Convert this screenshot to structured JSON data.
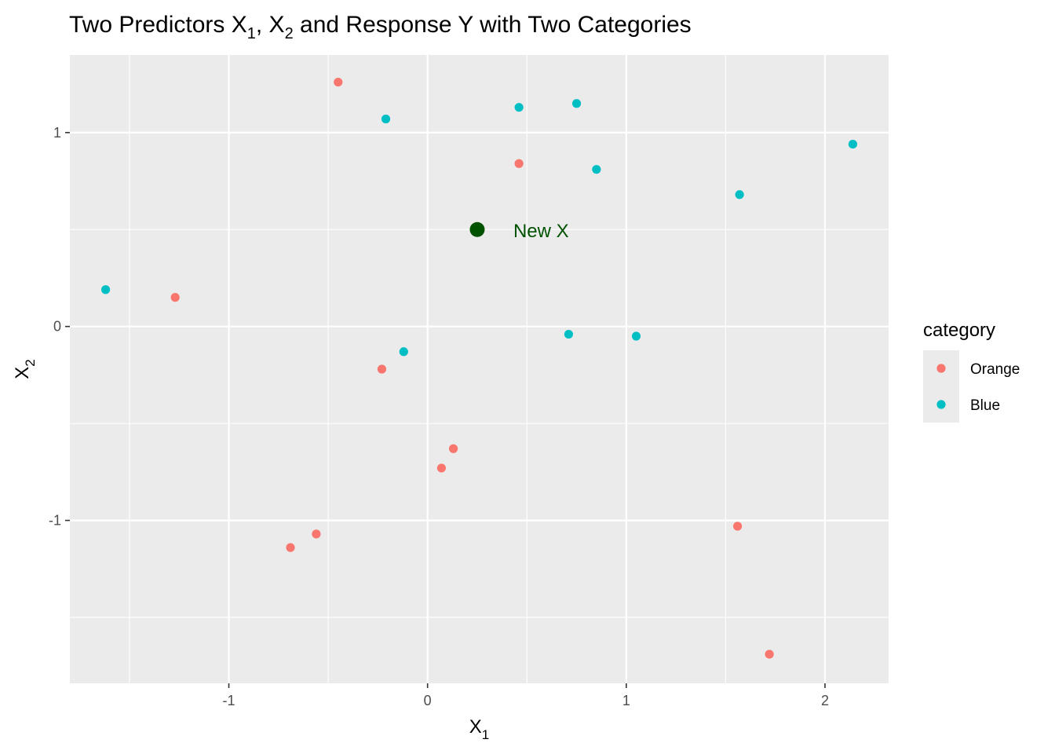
{
  "chart_data": {
    "type": "scatter",
    "title": {
      "prefix": "Two Predictors X",
      "sub1": "1",
      "mid": ", X",
      "sub2": "2",
      "suffix": " and Response Y with Two Categories"
    },
    "xlabel": {
      "base": "X",
      "sub": "1"
    },
    "ylabel": {
      "base": "X",
      "sub": "2"
    },
    "xlim": [
      -1.8,
      2.32
    ],
    "ylim": [
      -1.84,
      1.4
    ],
    "x_ticks": [
      -1,
      0,
      1,
      2
    ],
    "y_ticks": [
      -1,
      0,
      1
    ],
    "grid": true,
    "panel_color": "#ebebeb",
    "legend": {
      "title": "category",
      "placement": "right",
      "entries": [
        {
          "label": "Orange",
          "color": "#f8766d"
        },
        {
          "label": "Blue",
          "color": "#00bfc4"
        }
      ]
    },
    "series": [
      {
        "name": "Orange",
        "color": "#f8766d",
        "points": [
          {
            "x": -0.45,
            "y": 1.26
          },
          {
            "x": 0.46,
            "y": 0.84
          },
          {
            "x": -1.27,
            "y": 0.15
          },
          {
            "x": -0.23,
            "y": -0.22
          },
          {
            "x": 0.13,
            "y": -0.63
          },
          {
            "x": 0.07,
            "y": -0.73
          },
          {
            "x": -0.56,
            "y": -1.07
          },
          {
            "x": -0.69,
            "y": -1.14
          },
          {
            "x": 1.56,
            "y": -1.03
          },
          {
            "x": 1.72,
            "y": -1.69
          }
        ]
      },
      {
        "name": "Blue",
        "color": "#00bfc4",
        "points": [
          {
            "x": -0.21,
            "y": 1.07
          },
          {
            "x": 0.46,
            "y": 1.13
          },
          {
            "x": 0.75,
            "y": 1.15
          },
          {
            "x": 0.85,
            "y": 0.81
          },
          {
            "x": 1.57,
            "y": 0.68
          },
          {
            "x": 2.14,
            "y": 0.94
          },
          {
            "x": -1.62,
            "y": 0.19
          },
          {
            "x": -0.12,
            "y": -0.13
          },
          {
            "x": 0.71,
            "y": -0.04
          },
          {
            "x": 1.05,
            "y": -0.05
          }
        ]
      }
    ],
    "annotation": {
      "point": {
        "x": 0.25,
        "y": 0.5
      },
      "label": "New X",
      "color": "#005200"
    }
  }
}
